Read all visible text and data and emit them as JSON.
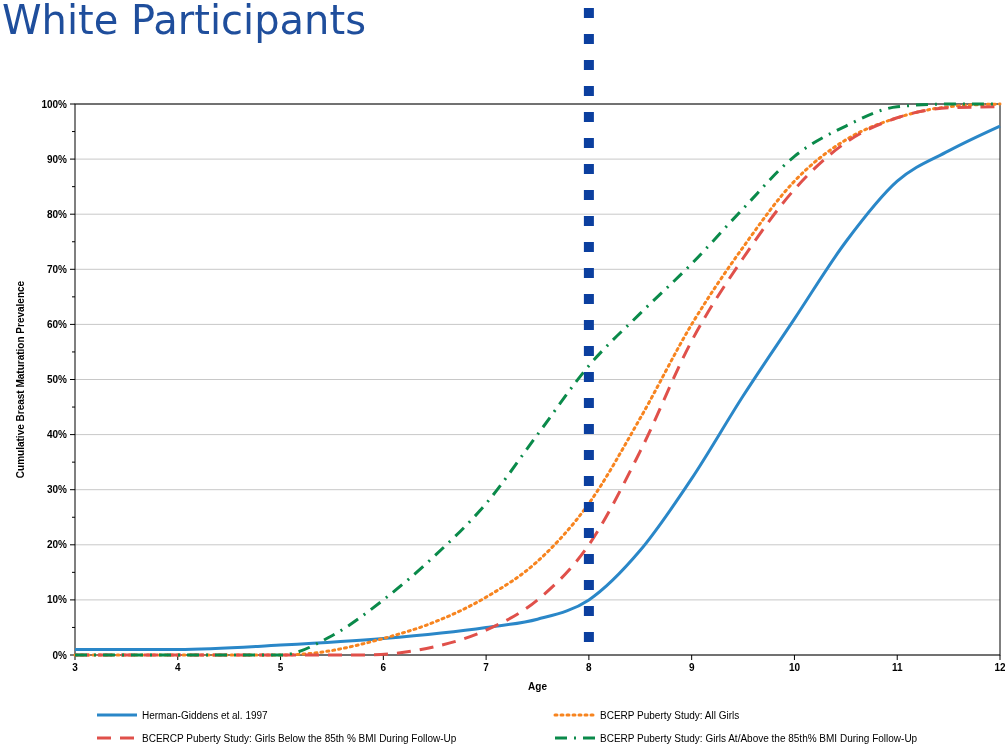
{
  "chart_data": {
    "type": "line",
    "title": "White Participants",
    "xlabel": "Age",
    "ylabel": "Cumulative Breast Maturation Prevalence",
    "xlim": [
      3,
      12
    ],
    "xticks": [
      3,
      4,
      5,
      6,
      7,
      8,
      9,
      10,
      11,
      12
    ],
    "ylim": [
      0,
      100
    ],
    "yticks": [
      {
        "value": 0,
        "label": "0%"
      },
      {
        "value": 5,
        "label": null
      },
      {
        "value": 10,
        "label": "10%"
      },
      {
        "value": 15,
        "label": null
      },
      {
        "value": 20,
        "label": "20%"
      },
      {
        "value": 25,
        "label": null
      },
      {
        "value": 30,
        "label": "30%"
      },
      {
        "value": 35,
        "label": null
      },
      {
        "value": 40,
        "label": "40%"
      },
      {
        "value": 45,
        "label": null
      },
      {
        "value": 50,
        "label": "50%"
      },
      {
        "value": 55,
        "label": null
      },
      {
        "value": 60,
        "label": "60%"
      },
      {
        "value": 65,
        "label": null
      },
      {
        "value": 70,
        "label": "70%"
      },
      {
        "value": 75,
        "label": null
      },
      {
        "value": 80,
        "label": "80%"
      },
      {
        "value": 85,
        "label": null
      },
      {
        "value": 90,
        "label": "90%"
      },
      {
        "value": 95,
        "label": null
      },
      {
        "value": 100,
        "label": "100%"
      }
    ],
    "grid": "y",
    "legend": "bottom",
    "marker": "none",
    "series": [
      {
        "name": "Herman-Giddens et al. 1997",
        "color": "#2a87c8",
        "line_style": "solid",
        "x": [
          3,
          4,
          5,
          6,
          7,
          7.5,
          8,
          8.5,
          9,
          9.5,
          10,
          10.5,
          11,
          11.5,
          12
        ],
        "values": [
          1,
          1,
          1.8,
          3,
          5,
          6.5,
          10,
          19,
          32,
          47,
          61,
          75,
          86,
          91.5,
          96
        ]
      },
      {
        "name": "BCERP Puberty Study: All Girls",
        "color": "#f7841f",
        "line_style": "dotted",
        "x": [
          3,
          5,
          5.3,
          6,
          6.5,
          7,
          7.5,
          8,
          8.5,
          9,
          9.5,
          10,
          10.5,
          11,
          11.5,
          12
        ],
        "values": [
          0,
          0,
          0.3,
          3,
          6,
          10.5,
          17,
          27.5,
          43,
          60,
          74,
          86,
          93.5,
          97.5,
          99.5,
          100
        ]
      },
      {
        "name": "BCERCP Puberty Study: Girls Below the 85th % BMI During Follow-Up",
        "color": "#e0504a",
        "line_style": "dashed",
        "x": [
          3,
          5.8,
          6.5,
          7,
          7.5,
          8,
          8.5,
          9,
          9.5,
          10,
          10.5,
          11,
          11.5,
          12
        ],
        "values": [
          0,
          0,
          1.5,
          4.5,
          10,
          20,
          37,
          57,
          72,
          84.5,
          93,
          97.5,
          99.3,
          99.5
        ]
      },
      {
        "name": "BCERP Puberty Study: Girls At/Above the 85th% BMI During Follow-Up",
        "color": "#0a8a4a",
        "line_style": "dashdot",
        "x": [
          3,
          5,
          5.5,
          6,
          6.5,
          7,
          7.5,
          8,
          8.5,
          9,
          9.5,
          10,
          10.5,
          11,
          11.5,
          12
        ],
        "values": [
          0,
          0,
          3.5,
          10,
          18,
          27.5,
          40,
          52.5,
          62,
          71,
          81,
          90.5,
          96,
          99.5,
          100,
          100
        ]
      }
    ],
    "ref_lines": [
      {
        "axis": "x",
        "value": 8,
        "label": null,
        "color": "#0b3f9f",
        "line_style": "dotted"
      }
    ]
  }
}
